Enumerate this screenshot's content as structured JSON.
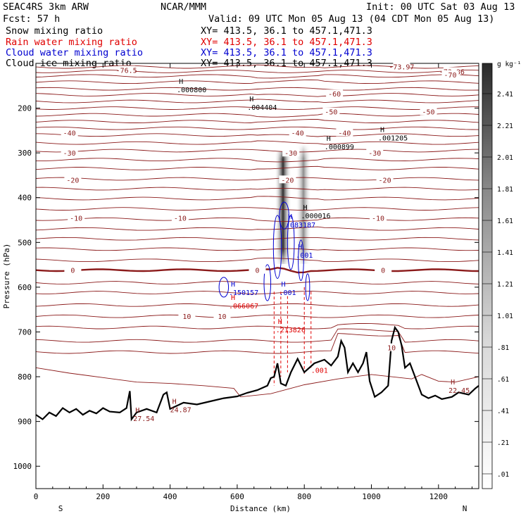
{
  "header": {
    "model": "SEAC4RS  3km ARW",
    "fcst": "Fcst:   57 h",
    "center": "NCAR/MMM",
    "init": "Init: 00 UTC Sat 03 Aug 13",
    "valid": "Valid: 09 UTC Mon 05 Aug 13 (04 CDT Mon 05 Aug 13)",
    "fields": [
      {
        "label": "Snow mixing ratio",
        "color": "#000000",
        "xy": "XY= 413.5, 36.1 to 457.1,471.3"
      },
      {
        "label": "Rain water mixing ratio",
        "color": "#e00000",
        "xy": "XY= 413.5, 36.1 to 457.1,471.3"
      },
      {
        "label": "Cloud water mixing ratio",
        "color": "#0000d0",
        "xy": "XY= 413.5, 36.1 to 457.1,471.3"
      },
      {
        "label": "Cloud ice mixing ratio",
        "color": "#000000",
        "xy": "XY= 413.5, 36.1 to 457.1,471.3"
      }
    ]
  },
  "chart_data": {
    "type": "heatmap",
    "xlabel": "Distance (km)",
    "ylabel": "Pressure (hPa)",
    "xlim": [
      0,
      1320
    ],
    "ylim": [
      1050,
      100
    ],
    "x_ticks": [
      0,
      200,
      400,
      600,
      800,
      1000,
      1200
    ],
    "y_ticks": [
      200,
      300,
      400,
      500,
      600,
      700,
      800,
      900,
      1000
    ],
    "x_end_labels": {
      "left": "S",
      "right": "N"
    },
    "colorbar": {
      "unit": "g kg⁻¹",
      "ticks": [
        "2.41",
        "2.21",
        "2.01",
        "1.81",
        "1.61",
        "1.41",
        "1.21",
        "1.01",
        ".81",
        ".61",
        ".41",
        ".21",
        ".01"
      ]
    },
    "temperature_contours": [
      {
        "label": "-76.5",
        "p": 115
      },
      {
        "label": "-73.97",
        "p": 107
      },
      {
        "label": "-73.86",
        "p": 118
      },
      {
        "label": "-70",
        "p": 125
      },
      {
        "label": "-60",
        "p": 168
      },
      {
        "label": "-50",
        "p": 208
      },
      {
        "label": "-50",
        "p": 208
      },
      {
        "label": "-40",
        "p": 255
      },
      {
        "label": "-40",
        "p": 255
      },
      {
        "label": "-40",
        "p": 255
      },
      {
        "label": "-30",
        "p": 300
      },
      {
        "label": "-30",
        "p": 300
      },
      {
        "label": "-30",
        "p": 300
      },
      {
        "label": "-20",
        "p": 360
      },
      {
        "label": "-20",
        "p": 360
      },
      {
        "label": "-20",
        "p": 360
      },
      {
        "label": "-10",
        "p": 445
      },
      {
        "label": "-10",
        "p": 445
      },
      {
        "label": "-10",
        "p": 445
      },
      {
        "label": "0",
        "p": 562
      },
      {
        "label": "0",
        "p": 562
      },
      {
        "label": "0",
        "p": 562
      },
      {
        "label": "10",
        "p": 665
      },
      {
        "label": "10",
        "p": 665
      },
      {
        "label": "10",
        "p": 735
      }
    ],
    "temperature_label_x": [
      270,
      1090,
      1240,
      1235,
      890,
      1170,
      880,
      100,
      780,
      920,
      100,
      760,
      1010,
      110,
      750,
      1040,
      120,
      430,
      1020,
      110,
      660,
      1035,
      450,
      555,
      1060
    ],
    "maxima": [
      {
        "marker": "H",
        "value": ".000800",
        "x": 420,
        "p": 150,
        "color": "#000000"
      },
      {
        "marker": "H",
        "value": ".004404",
        "x": 630,
        "p": 190,
        "color": "#000000"
      },
      {
        "marker": "H",
        "value": ".001205",
        "x": 1020,
        "p": 258,
        "color": "#000000"
      },
      {
        "marker": "H",
        "value": ".000899",
        "x": 860,
        "p": 278,
        "color": "#000000"
      },
      {
        "marker": "H",
        "value": ".000016",
        "x": 790,
        "p": 432,
        "color": "#000000"
      },
      {
        "marker": "H",
        "value": ".083187",
        "x": 745,
        "p": 452,
        "color": "#0000d0"
      },
      {
        "marker": "H",
        "value": ".001",
        "x": 775,
        "p": 520,
        "color": "#0000d0"
      },
      {
        "marker": "H",
        "value": ".150157",
        "x": 575,
        "p": 603,
        "color": "#0000d0"
      },
      {
        "marker": "H",
        "value": ".001",
        "x": 725,
        "p": 603,
        "color": "#0000d0"
      },
      {
        "marker": "H",
        "value": ".066067",
        "x": 575,
        "p": 633,
        "color": "#e00000"
      },
      {
        "marker": "H",
        "value": ".213826",
        "x": 715,
        "p": 687,
        "color": "#e00000"
      },
      {
        "marker": "",
        "value": ".001",
        "x": 820,
        "p": 777,
        "color": "#e00000"
      },
      {
        "marker": "H",
        "value": "24.87",
        "x": 400,
        "p": 865,
        "color": "#8b1a1a"
      },
      {
        "marker": "H",
        "value": "27.54",
        "x": 290,
        "p": 885,
        "color": "#8b1a1a"
      },
      {
        "marker": "H",
        "value": "22.45",
        "x": 1230,
        "p": 822,
        "color": "#8b1a1a"
      }
    ]
  }
}
